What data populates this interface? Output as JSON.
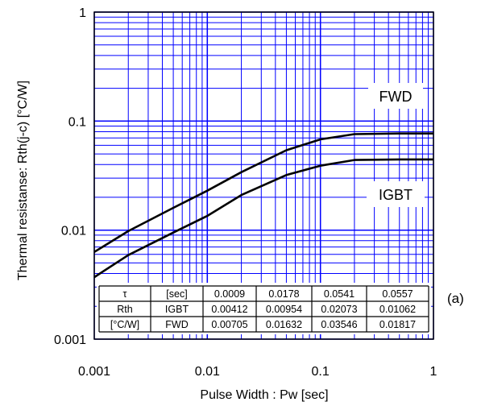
{
  "chart_data": {
    "type": "line",
    "xlabel": "Pulse Width : Pw [sec]",
    "ylabel": "Thermal resistanse: Rth(j-c) [°C/W]",
    "x_scale": "log",
    "y_scale": "log",
    "xlim": [
      0.001,
      1
    ],
    "ylim": [
      0.001,
      1
    ],
    "x_ticks": [
      "0.001",
      "0.01",
      "0.1",
      "1"
    ],
    "y_ticks": [
      "0.001",
      "0.01",
      "0.1",
      "1"
    ],
    "grid": true,
    "line_color": "#000000",
    "grid_color": "#0000ff",
    "series": [
      {
        "name": "FWD",
        "x": [
          0.001,
          0.002,
          0.005,
          0.01,
          0.02,
          0.05,
          0.1,
          0.2,
          0.5,
          1
        ],
        "y": [
          0.0063,
          0.0098,
          0.016,
          0.023,
          0.034,
          0.054,
          0.068,
          0.076,
          0.077,
          0.077
        ]
      },
      {
        "name": "IGBT",
        "x": [
          0.001,
          0.002,
          0.005,
          0.01,
          0.02,
          0.05,
          0.1,
          0.2,
          0.5,
          1
        ],
        "y": [
          0.0037,
          0.0059,
          0.0095,
          0.0135,
          0.021,
          0.032,
          0.039,
          0.044,
          0.0445,
          0.0445
        ]
      }
    ],
    "annotations": {
      "fwd_label": "FWD",
      "igbt_label": "IGBT",
      "panel_label": "(a)"
    },
    "table": {
      "rows": [
        [
          "τ",
          "[sec]",
          "0.0009",
          "0.0178",
          "0.0541",
          "0.0557"
        ],
        [
          "Rth",
          "IGBT",
          "0.00412",
          "0.00954",
          "0.02073",
          "0.01062"
        ],
        [
          "[°C/W]",
          "FWD",
          "0.00705",
          "0.01632",
          "0.03546",
          "0.01817"
        ]
      ]
    }
  }
}
